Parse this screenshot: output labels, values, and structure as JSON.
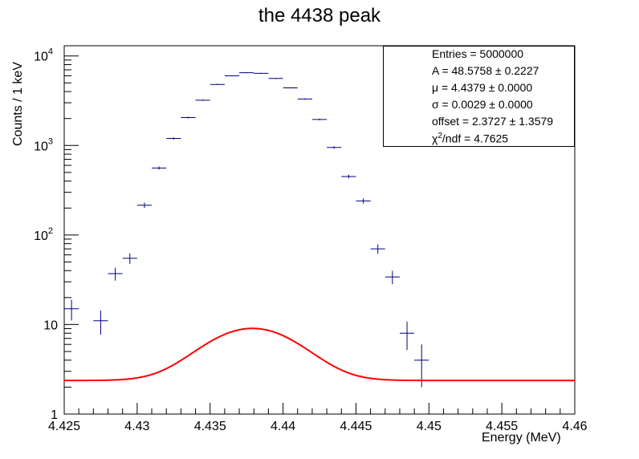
{
  "chart_data": {
    "type": "scatter",
    "title": "the 4438 peak",
    "xlabel": "Energy (MeV)",
    "ylabel": "Counts / 1 keV",
    "x_range": [
      4.425,
      4.46
    ],
    "y_range": [
      1,
      13000
    ],
    "y_scale": "log",
    "x_ticks": [
      "4.425",
      "4.43",
      "4.435",
      "4.44",
      "4.445",
      "4.45",
      "4.455",
      "4.46"
    ],
    "y_ticks": [
      {
        "value": 1,
        "base": "1",
        "exp": ""
      },
      {
        "value": 10,
        "base": "10",
        "exp": ""
      },
      {
        "value": 100,
        "base": "10",
        "exp": "2"
      },
      {
        "value": 1000,
        "base": "10",
        "exp": "3"
      },
      {
        "value": 10000,
        "base": "10",
        "exp": "4"
      }
    ],
    "points": [
      {
        "x": 4.4255,
        "y": 15,
        "yerr": 3.9
      },
      {
        "x": 4.4275,
        "y": 11,
        "yerr": 3.3
      },
      {
        "x": 4.4285,
        "y": 37,
        "yerr": 6.1
      },
      {
        "x": 4.4295,
        "y": 55,
        "yerr": 7.4
      },
      {
        "x": 4.4305,
        "y": 215,
        "yerr": 14.7
      },
      {
        "x": 4.4315,
        "y": 560,
        "yerr": 23.7
      },
      {
        "x": 4.4325,
        "y": 1200,
        "yerr": 34.6
      },
      {
        "x": 4.4335,
        "y": 2050,
        "yerr": 45.3
      },
      {
        "x": 4.4345,
        "y": 3200,
        "yerr": 56.6
      },
      {
        "x": 4.4355,
        "y": 4800,
        "yerr": 69.3
      },
      {
        "x": 4.4365,
        "y": 6000,
        "yerr": 77.5
      },
      {
        "x": 4.4375,
        "y": 6500,
        "yerr": 80.6
      },
      {
        "x": 4.4385,
        "y": 6400,
        "yerr": 80.0
      },
      {
        "x": 4.4395,
        "y": 5600,
        "yerr": 74.8
      },
      {
        "x": 4.4405,
        "y": 4400,
        "yerr": 66.3
      },
      {
        "x": 4.4415,
        "y": 3300,
        "yerr": 57.4
      },
      {
        "x": 4.4425,
        "y": 1950,
        "yerr": 44.2
      },
      {
        "x": 4.4435,
        "y": 950,
        "yerr": 30.8
      },
      {
        "x": 4.4445,
        "y": 450,
        "yerr": 21.2
      },
      {
        "x": 4.4455,
        "y": 240,
        "yerr": 15.5
      },
      {
        "x": 4.4465,
        "y": 70,
        "yerr": 8.4
      },
      {
        "x": 4.4475,
        "y": 34,
        "yerr": 5.8
      },
      {
        "x": 4.4485,
        "y": 8,
        "yerr": 2.8
      },
      {
        "x": 4.4495,
        "y": 4,
        "yerr": 2.0
      }
    ],
    "bin_width": 0.001,
    "fit": {
      "function": "gaussian_plus_offset",
      "A": 48.5758,
      "mu": 4.4379,
      "sigma": 0.0029,
      "offset": 2.3727,
      "color": "#ff0000"
    },
    "marker_color": "#000080",
    "stats": {
      "lines": [
        "Entries = 5000000",
        "A = 48.5758 ± 0.2227",
        "μ = 4.4379 ± 0.0000",
        "σ = 0.0029 ± 0.0000",
        "offset = 2.3727 ± 1.3579"
      ],
      "chi2_prefix": "χ",
      "chi2_sup": "2",
      "chi2_rest": "/ndf = 4.7625"
    }
  }
}
